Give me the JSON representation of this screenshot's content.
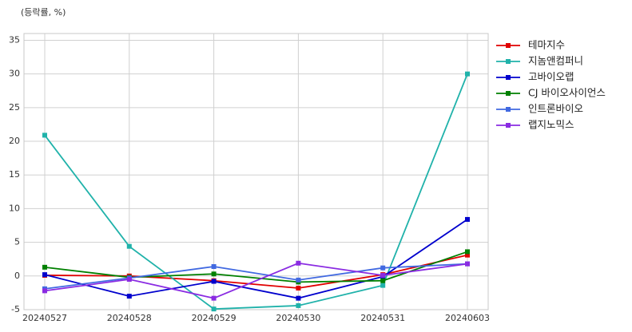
{
  "chart_data": {
    "type": "line",
    "y_label": "(등락률, %)",
    "categories": [
      "20240527",
      "20240528",
      "20240529",
      "20240530",
      "20240531",
      "20240603"
    ],
    "series": [
      {
        "name": "테마지수",
        "color": "#e00000",
        "values": [
          0.1,
          0.0,
          -0.7,
          -1.8,
          0.2,
          3.1
        ]
      },
      {
        "name": "지놈앤컴퍼니",
        "color": "#20b2aa",
        "values": [
          20.9,
          4.4,
          -4.9,
          -4.4,
          -1.4,
          30.0
        ]
      },
      {
        "name": "고바이오랩",
        "color": "#0000cd",
        "values": [
          0.2,
          -3.0,
          -0.8,
          -3.3,
          -0.1,
          8.4
        ]
      },
      {
        "name": "CJ 바이오사이언스",
        "color": "#008000",
        "values": [
          1.3,
          -0.2,
          0.3,
          -0.9,
          -0.7,
          3.6
        ]
      },
      {
        "name": "인트론바이오",
        "color": "#4169e1",
        "values": [
          -1.9,
          -0.3,
          1.4,
          -0.6,
          1.2,
          1.8
        ]
      },
      {
        "name": "랩지노믹스",
        "color": "#8a2be2",
        "values": [
          -2.2,
          -0.5,
          -3.3,
          1.9,
          0.1,
          1.8
        ]
      }
    ],
    "ylim": [
      -5,
      36
    ],
    "yticks": [
      -5,
      0,
      5,
      10,
      15,
      20,
      25,
      30,
      35
    ],
    "grid": true,
    "legend": "right"
  }
}
